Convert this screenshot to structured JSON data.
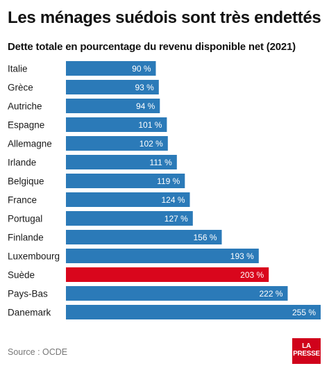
{
  "header": {
    "title": "Les ménages suédois sont très endettés",
    "subtitle": "Dette totale en pourcentage du revenu disponible net (2021)"
  },
  "footer": {
    "source": "Source : OCDE",
    "logo_line1": "LA",
    "logo_line2": "PRESSE"
  },
  "colors": {
    "bar": "#2b7ab8",
    "highlight": "#d9061c",
    "logo": "#d0021b"
  },
  "chart_data": {
    "type": "bar",
    "orientation": "horizontal",
    "title": "Les ménages suédois sont très endettés",
    "subtitle": "Dette totale en pourcentage du revenu disponible net (2021)",
    "categories": [
      "Italie",
      "Grèce",
      "Autriche",
      "Espagne",
      "Allemagne",
      "Irlande",
      "Belgique",
      "France",
      "Portugal",
      "Finlande",
      "Luxembourg",
      "Suède",
      "Pays-Bas",
      "Danemark"
    ],
    "values": [
      90,
      93,
      94,
      101,
      102,
      111,
      119,
      124,
      127,
      156,
      193,
      203,
      222,
      255
    ],
    "value_labels": [
      "90 %",
      "93 %",
      "94 %",
      "101 %",
      "102 %",
      "111 %",
      "119 %",
      "124 %",
      "127 %",
      "156 %",
      "193 %",
      "203 %",
      "222 %",
      "255 %"
    ],
    "highlight": "Suède",
    "xlim": [
      0,
      255
    ],
    "grid": false,
    "legend": "none"
  }
}
